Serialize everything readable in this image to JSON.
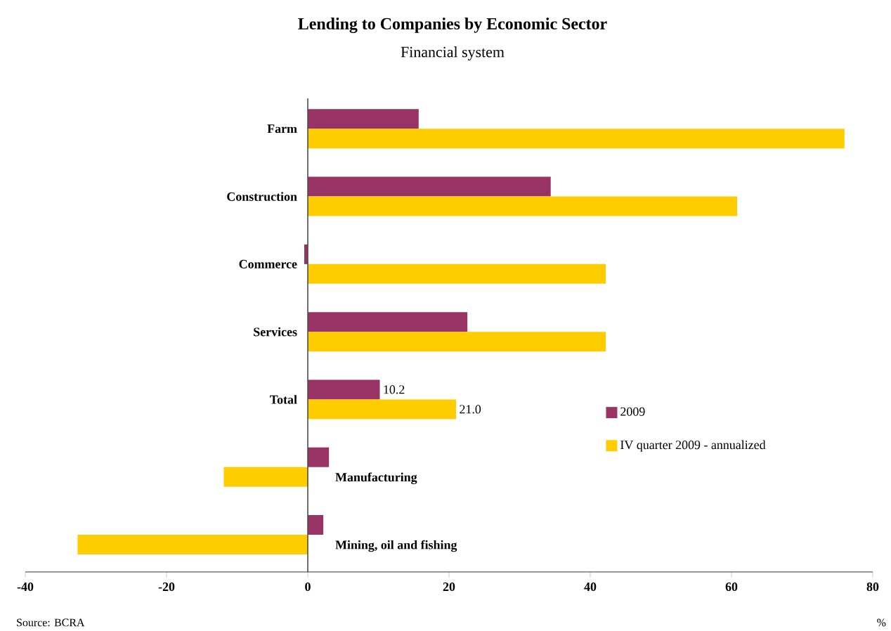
{
  "chart_data": {
    "type": "bar",
    "orientation": "horizontal",
    "title": "Lending to Companies by Economic Sector",
    "subtitle": "Financial system",
    "xlabel": "%",
    "categories": [
      "Farm",
      "Construction",
      "Commerce",
      "Services",
      "Total",
      "Manufacturing",
      "Mining, oil and fishing"
    ],
    "series": [
      {
        "name": "2009",
        "color": "#993366",
        "values": [
          15.7,
          34.4,
          -0.5,
          22.6,
          10.2,
          3.0,
          2.2
        ],
        "value_labels": [
          null,
          null,
          null,
          null,
          "10.2",
          null,
          null
        ]
      },
      {
        "name": "IV quarter 2009 - annualized",
        "color": "#ffcc00",
        "values": [
          76.0,
          60.8,
          42.2,
          42.2,
          21.0,
          -11.9,
          -32.6
        ],
        "value_labels": [
          null,
          null,
          null,
          null,
          "21.0",
          null,
          null
        ]
      }
    ],
    "xlim": [
      -40,
      80
    ],
    "xticks": [
      -40,
      -20,
      0,
      20,
      40,
      60,
      80
    ],
    "grid": false,
    "legend": "right",
    "annotations": [
      "Source: BCRA"
    ]
  }
}
